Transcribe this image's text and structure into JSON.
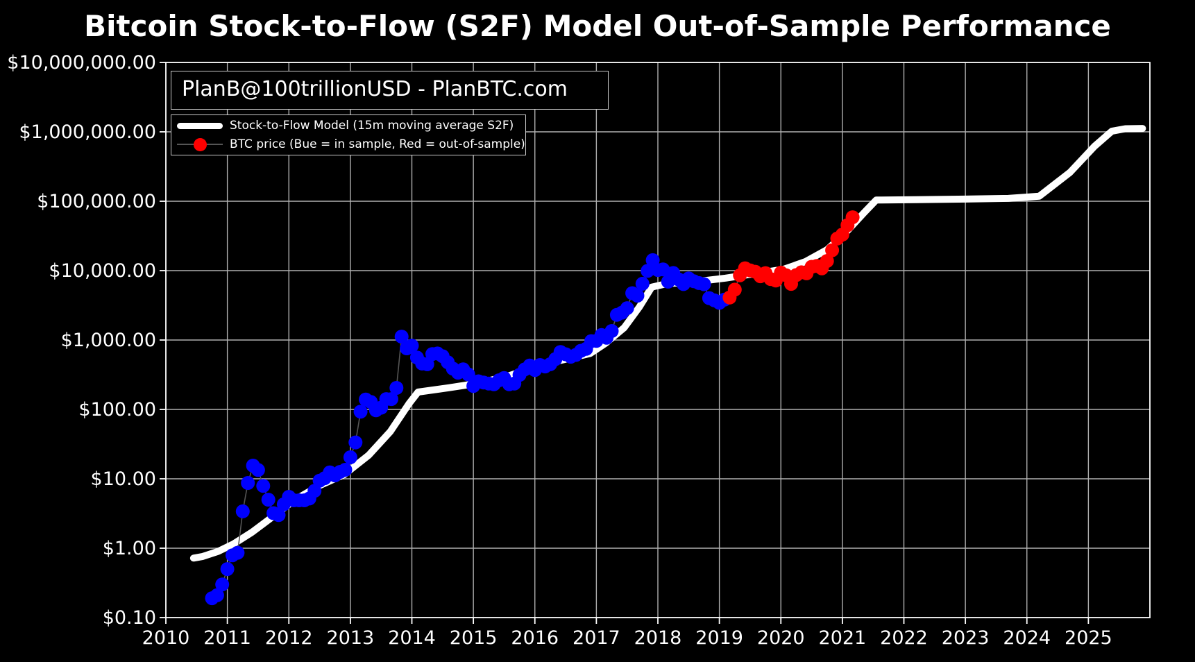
{
  "title": "Bitcoin Stock-to-Flow (S2F) Model Out-of-Sample Performance",
  "watermark": "PlanB@100trillionUSD - PlanBTC.com",
  "legend": {
    "model_label": "Stock-to-Flow Model (15m moving average S2F)",
    "price_label": "BTC price (Bue = in sample, Red = out-of-sample)"
  },
  "colors": {
    "background": "#000000",
    "grid": "#b0b0b0",
    "frame": "#ffffff",
    "text": "#ffffff",
    "model_line": "#ffffff",
    "in_sample_dot": "#0000ff",
    "out_of_sample_dot": "#ff0000",
    "connector": "#555555"
  },
  "chart_data": {
    "type": "line",
    "title": "Bitcoin Stock-to-Flow (S2F) Model Out-of-Sample Performance",
    "xlabel": "",
    "ylabel": "",
    "x_axis": {
      "range": [
        2010,
        2026
      ],
      "ticks": [
        2010,
        2011,
        2012,
        2013,
        2014,
        2015,
        2016,
        2017,
        2018,
        2019,
        2020,
        2021,
        2022,
        2023,
        2024,
        2025
      ],
      "grid": true
    },
    "y_axis": {
      "scale": "log",
      "range": [
        0.1,
        10000000
      ],
      "grid": true,
      "ticks": [
        {
          "value": 10000000,
          "label": "$10,000,000.00"
        },
        {
          "value": 1000000,
          "label": "$1,000,000.00"
        },
        {
          "value": 100000,
          "label": "$100,000.00"
        },
        {
          "value": 10000,
          "label": "$10,000.00"
        },
        {
          "value": 1000,
          "label": "$1,000.00"
        },
        {
          "value": 100,
          "label": "$100.00"
        },
        {
          "value": 10,
          "label": "$10.00"
        },
        {
          "value": 1,
          "label": "$1.00"
        },
        {
          "value": 0.1,
          "label": "$0.10"
        }
      ]
    },
    "legend_position": "upper-left",
    "series": [
      {
        "name": "Stock-to-Flow Model (15m moving average S2F)",
        "type": "line",
        "color": "#ffffff",
        "line_width": 10,
        "points": [
          [
            2010.45,
            0.72
          ],
          [
            2010.6,
            0.76
          ],
          [
            2010.85,
            0.9
          ],
          [
            2011.1,
            1.15
          ],
          [
            2011.4,
            1.7
          ],
          [
            2011.75,
            2.9
          ],
          [
            2012.1,
            5.0
          ],
          [
            2012.5,
            8.0
          ],
          [
            2012.9,
            11.5
          ],
          [
            2013.3,
            22
          ],
          [
            2013.65,
            48
          ],
          [
            2013.95,
            120
          ],
          [
            2014.1,
            178
          ],
          [
            2014.6,
            205
          ],
          [
            2015.1,
            240
          ],
          [
            2015.6,
            310
          ],
          [
            2016.1,
            440
          ],
          [
            2016.55,
            540
          ],
          [
            2016.9,
            640
          ],
          [
            2017.15,
            900
          ],
          [
            2017.45,
            1500
          ],
          [
            2017.7,
            3000
          ],
          [
            2017.9,
            5800
          ],
          [
            2018.15,
            6500
          ],
          [
            2018.6,
            6900
          ],
          [
            2019.1,
            7800
          ],
          [
            2019.6,
            9100
          ],
          [
            2020.05,
            10500
          ],
          [
            2020.4,
            13500
          ],
          [
            2020.75,
            20000
          ],
          [
            2021.05,
            35000
          ],
          [
            2021.35,
            68000
          ],
          [
            2021.55,
            104000
          ],
          [
            2022.2,
            105500
          ],
          [
            2023.0,
            107500
          ],
          [
            2023.7,
            110000
          ],
          [
            2024.2,
            118000
          ],
          [
            2024.7,
            260000
          ],
          [
            2025.1,
            620000
          ],
          [
            2025.38,
            1020000
          ],
          [
            2025.6,
            1110000
          ],
          [
            2025.88,
            1120000
          ]
        ]
      },
      {
        "name": "BTC price (in sample)",
        "type": "scatter",
        "color": "#0000ff",
        "marker_radius": 10,
        "points": [
          {
            "m": "2010-10",
            "v": 0.19
          },
          {
            "m": "2010-11",
            "v": 0.21
          },
          {
            "m": "2010-12",
            "v": 0.3
          },
          {
            "m": "2011-01",
            "v": 0.5
          },
          {
            "m": "2011-02",
            "v": 0.79
          },
          {
            "m": "2011-03",
            "v": 0.86
          },
          {
            "m": "2011-04",
            "v": 3.4
          },
          {
            "m": "2011-05",
            "v": 8.7
          },
          {
            "m": "2011-06",
            "v": 15.5
          },
          {
            "m": "2011-07",
            "v": 13.4
          },
          {
            "m": "2011-08",
            "v": 7.9
          },
          {
            "m": "2011-09",
            "v": 5.0
          },
          {
            "m": "2011-10",
            "v": 3.2
          },
          {
            "m": "2011-11",
            "v": 3.0
          },
          {
            "m": "2011-12",
            "v": 4.3
          },
          {
            "m": "2012-01",
            "v": 5.5
          },
          {
            "m": "2012-02",
            "v": 4.9
          },
          {
            "m": "2012-03",
            "v": 4.9
          },
          {
            "m": "2012-04",
            "v": 4.9
          },
          {
            "m": "2012-05",
            "v": 5.2
          },
          {
            "m": "2012-06",
            "v": 6.7
          },
          {
            "m": "2012-07",
            "v": 9.4
          },
          {
            "m": "2012-08",
            "v": 10.2
          },
          {
            "m": "2012-09",
            "v": 12.4
          },
          {
            "m": "2012-10",
            "v": 11.2
          },
          {
            "m": "2012-11",
            "v": 12.6
          },
          {
            "m": "2012-12",
            "v": 13.5
          },
          {
            "m": "2013-01",
            "v": 20.4
          },
          {
            "m": "2013-02",
            "v": 33.4
          },
          {
            "m": "2013-03",
            "v": 93
          },
          {
            "m": "2013-04",
            "v": 139
          },
          {
            "m": "2013-05",
            "v": 128
          },
          {
            "m": "2013-06",
            "v": 97
          },
          {
            "m": "2013-07",
            "v": 106
          },
          {
            "m": "2013-08",
            "v": 141
          },
          {
            "m": "2013-09",
            "v": 141
          },
          {
            "m": "2013-10",
            "v": 204
          },
          {
            "m": "2013-11",
            "v": 1120
          },
          {
            "m": "2013-12",
            "v": 758
          },
          {
            "m": "2014-01",
            "v": 830
          },
          {
            "m": "2014-02",
            "v": 558
          },
          {
            "m": "2014-03",
            "v": 458
          },
          {
            "m": "2014-04",
            "v": 448
          },
          {
            "m": "2014-05",
            "v": 628
          },
          {
            "m": "2014-06",
            "v": 640
          },
          {
            "m": "2014-07",
            "v": 583
          },
          {
            "m": "2014-08",
            "v": 478
          },
          {
            "m": "2014-09",
            "v": 387
          },
          {
            "m": "2014-10",
            "v": 338
          },
          {
            "m": "2014-11",
            "v": 378
          },
          {
            "m": "2014-12",
            "v": 320
          },
          {
            "m": "2015-01",
            "v": 218
          },
          {
            "m": "2015-02",
            "v": 254
          },
          {
            "m": "2015-03",
            "v": 244
          },
          {
            "m": "2015-04",
            "v": 236
          },
          {
            "m": "2015-05",
            "v": 230
          },
          {
            "m": "2015-06",
            "v": 263
          },
          {
            "m": "2015-07",
            "v": 284
          },
          {
            "m": "2015-08",
            "v": 230
          },
          {
            "m": "2015-09",
            "v": 236
          },
          {
            "m": "2015-10",
            "v": 314
          },
          {
            "m": "2015-11",
            "v": 377
          },
          {
            "m": "2015-12",
            "v": 430
          },
          {
            "m": "2016-01",
            "v": 369
          },
          {
            "m": "2016-02",
            "v": 437
          },
          {
            "m": "2016-03",
            "v": 416
          },
          {
            "m": "2016-04",
            "v": 448
          },
          {
            "m": "2016-05",
            "v": 531
          },
          {
            "m": "2016-06",
            "v": 673
          },
          {
            "m": "2016-07",
            "v": 624
          },
          {
            "m": "2016-08",
            "v": 574
          },
          {
            "m": "2016-09",
            "v": 610
          },
          {
            "m": "2016-10",
            "v": 700
          },
          {
            "m": "2016-11",
            "v": 745
          },
          {
            "m": "2016-12",
            "v": 964
          },
          {
            "m": "2017-01",
            "v": 970
          },
          {
            "m": "2017-02",
            "v": 1180
          },
          {
            "m": "2017-03",
            "v": 1080
          },
          {
            "m": "2017-04",
            "v": 1350
          },
          {
            "m": "2017-05",
            "v": 2300
          },
          {
            "m": "2017-06",
            "v": 2480
          },
          {
            "m": "2017-07",
            "v": 2875
          },
          {
            "m": "2017-08",
            "v": 4735
          },
          {
            "m": "2017-09",
            "v": 4360
          },
          {
            "m": "2017-10",
            "v": 6468
          },
          {
            "m": "2017-11",
            "v": 9916
          },
          {
            "m": "2017-12",
            "v": 14156
          },
          {
            "m": "2018-01",
            "v": 10221
          },
          {
            "m": "2018-02",
            "v": 10397
          },
          {
            "m": "2018-03",
            "v": 6938
          },
          {
            "m": "2018-04",
            "v": 9240
          },
          {
            "m": "2018-05",
            "v": 7494
          },
          {
            "m": "2018-06",
            "v": 6404
          },
          {
            "m": "2018-07",
            "v": 7730
          },
          {
            "m": "2018-08",
            "v": 7033
          },
          {
            "m": "2018-09",
            "v": 6626
          },
          {
            "m": "2018-10",
            "v": 6371
          },
          {
            "m": "2018-11",
            "v": 4017
          },
          {
            "m": "2018-12",
            "v": 3743
          },
          {
            "m": "2019-01",
            "v": 3437
          },
          {
            "m": "2019-02",
            "v": 3816
          }
        ]
      },
      {
        "name": "BTC price (out-of-sample)",
        "type": "scatter",
        "color": "#ff0000",
        "marker_radius": 10,
        "points": [
          {
            "m": "2019-03",
            "v": 4097
          },
          {
            "m": "2019-04",
            "v": 5320
          },
          {
            "m": "2019-05",
            "v": 8574
          },
          {
            "m": "2019-06",
            "v": 10817
          },
          {
            "m": "2019-07",
            "v": 10085
          },
          {
            "m": "2019-08",
            "v": 9630
          },
          {
            "m": "2019-09",
            "v": 8308
          },
          {
            "m": "2019-10",
            "v": 9199
          },
          {
            "m": "2019-11",
            "v": 7569
          },
          {
            "m": "2019-12",
            "v": 7193
          },
          {
            "m": "2020-01",
            "v": 9350
          },
          {
            "m": "2020-02",
            "v": 8599
          },
          {
            "m": "2020-03",
            "v": 6438
          },
          {
            "m": "2020-04",
            "v": 8629
          },
          {
            "m": "2020-05",
            "v": 9454
          },
          {
            "m": "2020-06",
            "v": 9137
          },
          {
            "m": "2020-07",
            "v": 11351
          },
          {
            "m": "2020-08",
            "v": 11655
          },
          {
            "m": "2020-09",
            "v": 10784
          },
          {
            "m": "2020-10",
            "v": 13781
          },
          {
            "m": "2020-11",
            "v": 19695
          },
          {
            "m": "2020-12",
            "v": 28996
          },
          {
            "m": "2021-01",
            "v": 33114
          },
          {
            "m": "2021-02",
            "v": 45137
          },
          {
            "m": "2021-03",
            "v": 58787
          }
        ]
      }
    ]
  }
}
